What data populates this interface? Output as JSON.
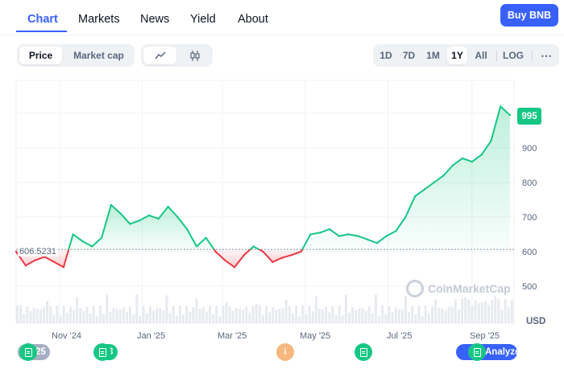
{
  "nav": {
    "tabs": [
      "Chart",
      "Markets",
      "News",
      "Yield",
      "About"
    ],
    "buy_button": "Buy BNB"
  },
  "toolbar": {
    "price_label": "Price",
    "market_cap_label": "Market cap",
    "line_icon": "line-chart-icon",
    "candle_icon": "candlestick-icon",
    "ranges": [
      "1D",
      "7D",
      "1M",
      "1Y",
      "All"
    ],
    "active_range": "1Y",
    "log_label": "LOG",
    "more_icon": "more-icon"
  },
  "chart": {
    "current_price_label": "995",
    "baseline_label": "606.5231",
    "watermark": "CoinMarketCap",
    "currency": "USD",
    "y_ticks": [
      "900",
      "800",
      "700",
      "600",
      "500"
    ],
    "x_ticks": [
      "Nov '24",
      "Jan '25",
      "Mar '25",
      "May '25",
      "Jul '25",
      "Sep '25"
    ],
    "colors": {
      "up": "#16c784",
      "down": "#ea3943",
      "accent": "#3861fb"
    }
  },
  "events": {
    "marker_first_count": "25",
    "marker_second_count": "3",
    "marker_info": "i",
    "analyze_label": "Analyze"
  },
  "chart_data": {
    "type": "line",
    "title": "",
    "xlabel": "",
    "ylabel": "USD",
    "ylim": [
      440,
      1020
    ],
    "baseline": 606.5231,
    "x": [
      "2024-09-30",
      "2024-10-07",
      "2024-10-14",
      "2024-10-21",
      "2024-10-28",
      "2024-11-04",
      "2024-11-11",
      "2024-11-18",
      "2024-11-25",
      "2024-12-02",
      "2024-12-09",
      "2024-12-16",
      "2024-12-23",
      "2024-12-30",
      "2025-01-06",
      "2025-01-13",
      "2025-01-20",
      "2025-01-27",
      "2025-02-03",
      "2025-02-10",
      "2025-02-17",
      "2025-02-24",
      "2025-03-03",
      "2025-03-10",
      "2025-03-17",
      "2025-03-24",
      "2025-03-31",
      "2025-04-07",
      "2025-04-14",
      "2025-04-21",
      "2025-04-28",
      "2025-05-05",
      "2025-05-12",
      "2025-05-19",
      "2025-05-26",
      "2025-06-02",
      "2025-06-09",
      "2025-06-16",
      "2025-06-23",
      "2025-06-30",
      "2025-07-07",
      "2025-07-14",
      "2025-07-21",
      "2025-07-28",
      "2025-08-04",
      "2025-08-11",
      "2025-08-18",
      "2025-08-25",
      "2025-09-01",
      "2025-09-08",
      "2025-09-15",
      "2025-09-22",
      "2025-09-29"
    ],
    "y": [
      600,
      560,
      575,
      585,
      570,
      555,
      650,
      630,
      615,
      640,
      735,
      710,
      680,
      690,
      705,
      695,
      730,
      700,
      665,
      615,
      640,
      600,
      575,
      555,
      590,
      615,
      600,
      570,
      582,
      590,
      600,
      650,
      655,
      665,
      645,
      650,
      645,
      635,
      625,
      645,
      660,
      700,
      760,
      780,
      800,
      820,
      850,
      870,
      860,
      880,
      920,
      1020,
      995
    ]
  }
}
